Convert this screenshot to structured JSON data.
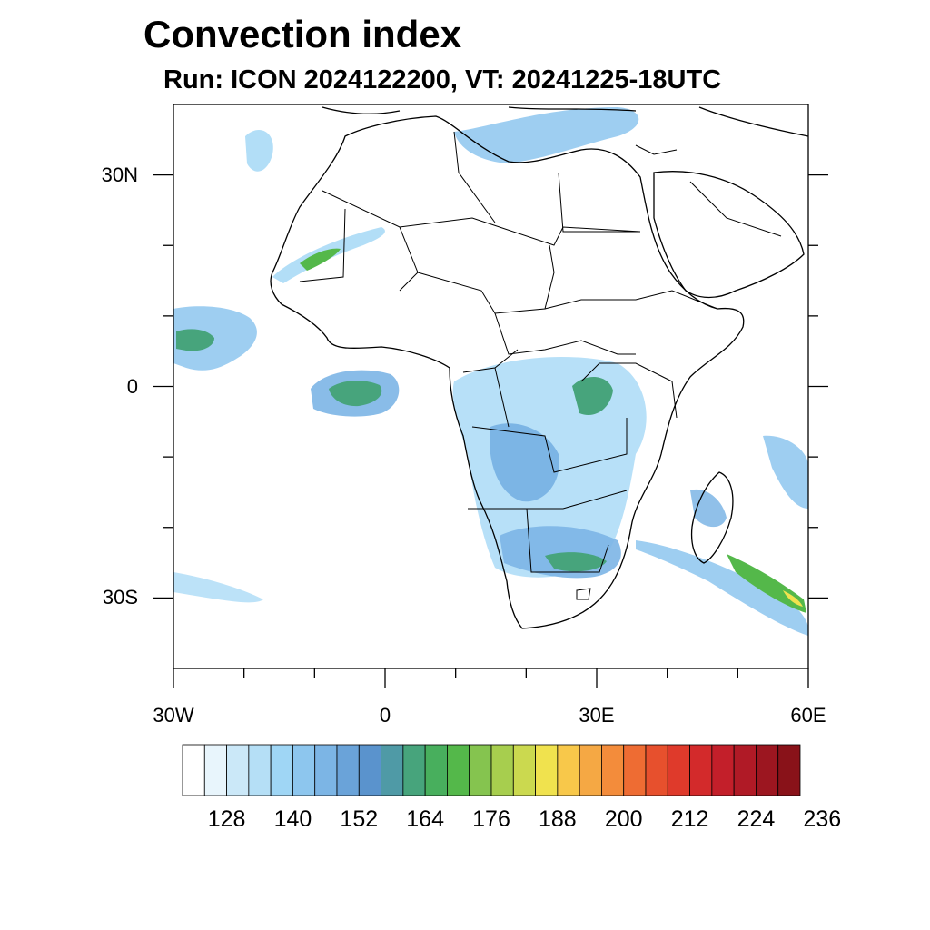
{
  "title": "Convection index",
  "subtitle": "Run: ICON 2024122200,  VT: 20241225-18UTC",
  "map": {
    "lon_range": [
      -30,
      60
    ],
    "lat_range": [
      -40,
      40
    ],
    "x_ticks": [
      {
        "lon": -30,
        "label": "30W"
      },
      {
        "lon": 0,
        "label": "0"
      },
      {
        "lon": 30,
        "label": "30E"
      },
      {
        "lon": 60,
        "label": "60E"
      }
    ],
    "y_ticks": [
      {
        "lat": 30,
        "label": "30N"
      },
      {
        "lat": 0,
        "label": "0"
      },
      {
        "lat": -30,
        "label": "30S"
      }
    ],
    "minor_lon": [
      -20,
      -10,
      10,
      20,
      40,
      50
    ],
    "minor_lat": [
      20,
      10,
      -10,
      -20
    ]
  },
  "colorbar": {
    "colors": [
      "#ffffff",
      "#e8f5fc",
      "#cbe8f8",
      "#b5dff6",
      "#9fd6f5",
      "#8dc6ee",
      "#7cb5e5",
      "#6aa3d9",
      "#5a93cd",
      "#4f9aa6",
      "#47a47c",
      "#48af5d",
      "#54b84a",
      "#85c44f",
      "#a7ce4e",
      "#cbd94f",
      "#f0e24e",
      "#f8c84a",
      "#f5a844",
      "#f38c3b",
      "#ee6c33",
      "#e7502d",
      "#df3a2b",
      "#d32a2b",
      "#c31f2a",
      "#b01a26",
      "#9c1620",
      "#891219"
    ],
    "tick_labels": [
      "128",
      "140",
      "152",
      "164",
      "176",
      "188",
      "200",
      "212",
      "224",
      "236"
    ],
    "first_label_box": 2,
    "label_box_step": 3
  }
}
